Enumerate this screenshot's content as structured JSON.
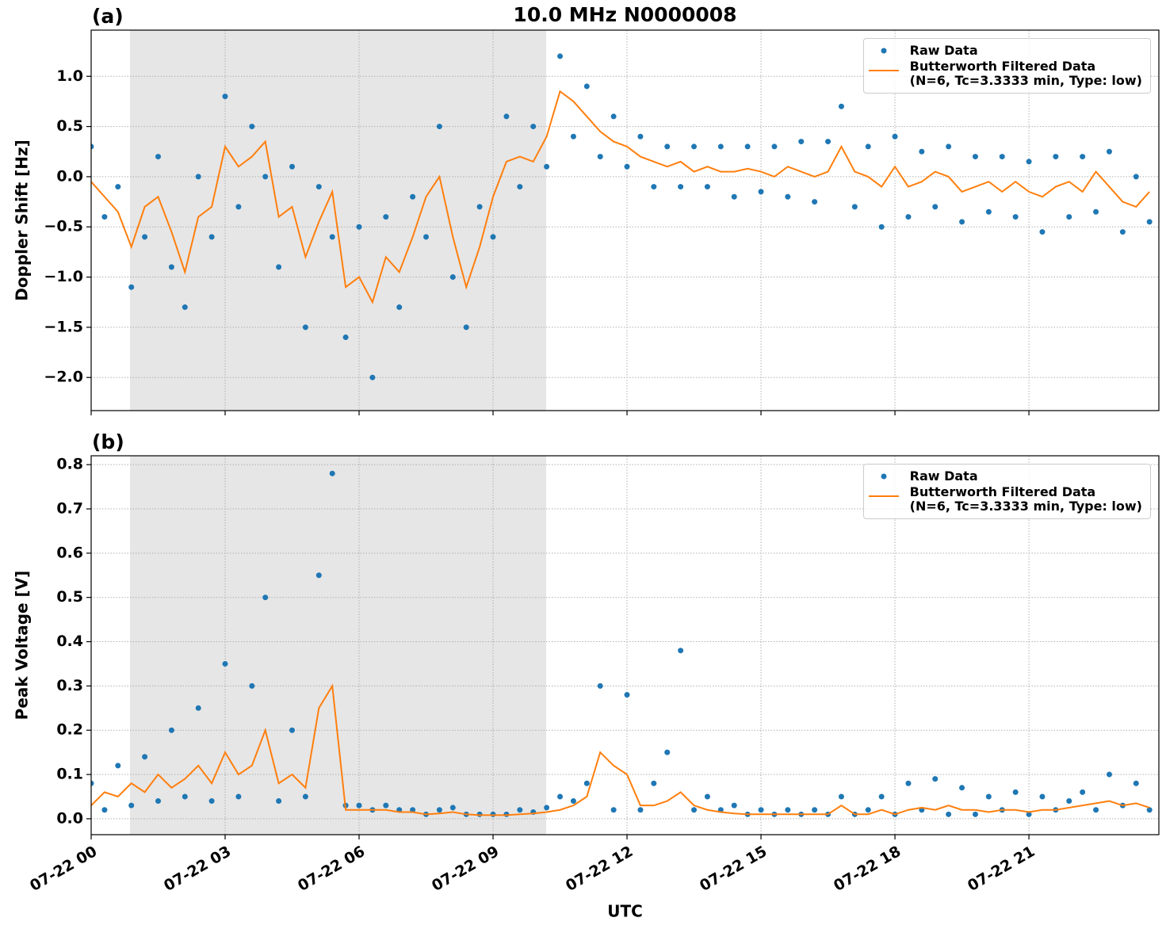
{
  "chart_data": [
    {
      "type": "line",
      "title": "10.0 MHz N0000008",
      "panel_label": "(a)",
      "ylabel": "Doppler Shift [Hz]",
      "xlim": [
        0,
        23.91
      ],
      "ylim": [
        -2.33,
        1.46
      ],
      "xticks": [
        0,
        3,
        6,
        9,
        12,
        15,
        18,
        21
      ],
      "yticks": [
        {
          "value": -2,
          "label": "−2.0"
        },
        {
          "value": -1.5,
          "label": "−1.5"
        },
        {
          "value": -1,
          "label": "−1.0"
        },
        {
          "value": -0.5,
          "label": "−0.5"
        },
        {
          "value": 0,
          "label": "0.0"
        },
        0.5,
        {
          "value": 1,
          "label": "1.0"
        }
      ],
      "grid": true,
      "legend": "upper right",
      "shaded_span": [
        0.87,
        10.19
      ],
      "shade_color": "#e6e6e6",
      "x": [
        0,
        0.3,
        0.6,
        0.9,
        1.2,
        1.5,
        1.8,
        2.1,
        2.4,
        2.7,
        3,
        3.3,
        3.6,
        3.9,
        4.2,
        4.5,
        4.8,
        5.1,
        5.4,
        5.7,
        6,
        6.3,
        6.6,
        6.9,
        7.2,
        7.5,
        7.8,
        8.1,
        8.4,
        8.7,
        9,
        9.3,
        9.6,
        9.9,
        10.2,
        10.5,
        10.8,
        11.1,
        11.4,
        11.7,
        12,
        12.3,
        12.6,
        12.9,
        13.2,
        13.5,
        13.8,
        14.1,
        14.4,
        14.7,
        15,
        15.3,
        15.6,
        15.9,
        16.2,
        16.5,
        16.8,
        17.1,
        17.4,
        17.7,
        18,
        18.3,
        18.6,
        18.9,
        19.2,
        19.5,
        19.8,
        20.1,
        20.4,
        20.7,
        21,
        21.3,
        21.6,
        21.9,
        22.2,
        22.5,
        22.8,
        23.1,
        23.4,
        23.7
      ],
      "series": [
        {
          "name": "Raw Data",
          "color": "#1f77b4",
          "style": "dots",
          "values": [
            0.3,
            -0.4,
            -0.1,
            -1.1,
            -0.6,
            0.2,
            -0.9,
            -1.3,
            0.0,
            -0.6,
            0.8,
            -0.3,
            0.5,
            0.0,
            -0.9,
            0.1,
            -1.5,
            -0.1,
            -0.6,
            -1.6,
            -0.5,
            -2.0,
            -0.4,
            -1.3,
            -0.2,
            -0.6,
            0.5,
            -1.0,
            -1.5,
            -0.3,
            -0.6,
            0.6,
            -0.1,
            0.5,
            0.1,
            1.2,
            0.4,
            0.9,
            0.2,
            0.6,
            0.1,
            0.4,
            -0.1,
            0.3,
            -0.1,
            0.3,
            -0.1,
            0.3,
            -0.2,
            0.3,
            -0.15,
            0.3,
            -0.2,
            0.35,
            -0.25,
            0.35,
            0.7,
            -0.3,
            0.3,
            -0.5,
            0.4,
            -0.4,
            0.25,
            -0.3,
            0.3,
            -0.45,
            0.2,
            -0.35,
            0.2,
            -0.4,
            0.15,
            -0.55,
            0.2,
            -0.4,
            0.2,
            -0.35,
            0.25,
            -0.55,
            0.0,
            -0.45
          ]
        },
        {
          "name": "Butterworth Filtered Data\n(N=6, Tc=3.3333 min, Type: low)",
          "color": "#ff7f0e",
          "style": "line",
          "values": [
            -0.05,
            -0.2,
            -0.35,
            -0.7,
            -0.3,
            -0.2,
            -0.55,
            -0.95,
            -0.4,
            -0.3,
            0.3,
            0.1,
            0.2,
            0.35,
            -0.4,
            -0.3,
            -0.8,
            -0.45,
            -0.15,
            -1.1,
            -1.0,
            -1.25,
            -0.8,
            -0.95,
            -0.6,
            -0.2,
            0.0,
            -0.6,
            -1.1,
            -0.7,
            -0.2,
            0.15,
            0.2,
            0.15,
            0.4,
            0.85,
            0.75,
            0.6,
            0.45,
            0.35,
            0.3,
            0.2,
            0.15,
            0.1,
            0.15,
            0.05,
            0.1,
            0.05,
            0.05,
            0.08,
            0.05,
            0.0,
            0.1,
            0.05,
            0.0,
            0.05,
            0.3,
            0.05,
            0.0,
            -0.1,
            0.1,
            -0.1,
            -0.05,
            0.05,
            0.0,
            -0.15,
            -0.1,
            -0.05,
            -0.15,
            -0.05,
            -0.15,
            -0.2,
            -0.1,
            -0.05,
            -0.15,
            0.05,
            -0.1,
            -0.25,
            -0.3,
            -0.15
          ]
        }
      ]
    },
    {
      "type": "line",
      "panel_label": "(b)",
      "ylabel": "Peak Voltage [V]",
      "xlabel": "UTC",
      "xlim": [
        0,
        23.91
      ],
      "ylim": [
        -0.036,
        0.82
      ],
      "xticks": [
        {
          "value": 0,
          "label": "07-22 00"
        },
        {
          "value": 3,
          "label": "07-22 03"
        },
        {
          "value": 6,
          "label": "07-22 06"
        },
        {
          "value": 9,
          "label": "07-22 09"
        },
        {
          "value": 12,
          "label": "07-22 12"
        },
        {
          "value": 15,
          "label": "07-22 15"
        },
        {
          "value": 18,
          "label": "07-22 18"
        },
        {
          "value": 21,
          "label": "07-22 21"
        }
      ],
      "yticks": [
        {
          "value": 0,
          "label": "0.0"
        },
        0.1,
        0.2,
        0.3,
        0.4,
        0.5,
        0.6,
        0.7,
        0.8
      ],
      "grid": true,
      "legend": "upper right",
      "shaded_span": [
        0.87,
        10.19
      ],
      "shade_color": "#e6e6e6",
      "x": [
        0,
        0.3,
        0.6,
        0.9,
        1.2,
        1.5,
        1.8,
        2.1,
        2.4,
        2.7,
        3,
        3.3,
        3.6,
        3.9,
        4.2,
        4.5,
        4.8,
        5.1,
        5.4,
        5.7,
        6,
        6.3,
        6.6,
        6.9,
        7.2,
        7.5,
        7.8,
        8.1,
        8.4,
        8.7,
        9,
        9.3,
        9.6,
        9.9,
        10.2,
        10.5,
        10.8,
        11.1,
        11.4,
        11.7,
        12,
        12.3,
        12.6,
        12.9,
        13.2,
        13.5,
        13.8,
        14.1,
        14.4,
        14.7,
        15,
        15.3,
        15.6,
        15.9,
        16.2,
        16.5,
        16.8,
        17.1,
        17.4,
        17.7,
        18,
        18.3,
        18.6,
        18.9,
        19.2,
        19.5,
        19.8,
        20.1,
        20.4,
        20.7,
        21,
        21.3,
        21.6,
        21.9,
        22.2,
        22.5,
        22.8,
        23.1,
        23.4,
        23.7
      ],
      "series": [
        {
          "name": "Raw Data",
          "color": "#1f77b4",
          "style": "dots",
          "values": [
            0.08,
            0.02,
            0.12,
            0.03,
            0.14,
            0.04,
            0.2,
            0.05,
            0.25,
            0.04,
            0.35,
            0.05,
            0.3,
            0.5,
            0.04,
            0.2,
            0.05,
            0.55,
            0.78,
            0.03,
            0.03,
            0.02,
            0.03,
            0.02,
            0.02,
            0.01,
            0.02,
            0.025,
            0.01,
            0.01,
            0.01,
            0.01,
            0.02,
            0.015,
            0.025,
            0.05,
            0.04,
            0.08,
            0.3,
            0.02,
            0.28,
            0.02,
            0.08,
            0.15,
            0.38,
            0.02,
            0.05,
            0.02,
            0.03,
            0.01,
            0.02,
            0.01,
            0.02,
            0.01,
            0.02,
            0.01,
            0.05,
            0.01,
            0.02,
            0.05,
            0.01,
            0.08,
            0.02,
            0.09,
            0.01,
            0.07,
            0.01,
            0.05,
            0.02,
            0.06,
            0.01,
            0.05,
            0.02,
            0.04,
            0.06,
            0.02,
            0.1,
            0.03,
            0.08,
            0.02
          ]
        },
        {
          "name": "Butterworth Filtered Data\n(N=6, Tc=3.3333 min, Type: low)",
          "color": "#ff7f0e",
          "style": "line",
          "values": [
            0.03,
            0.06,
            0.05,
            0.08,
            0.06,
            0.1,
            0.07,
            0.09,
            0.12,
            0.08,
            0.15,
            0.1,
            0.12,
            0.2,
            0.08,
            0.1,
            0.07,
            0.25,
            0.3,
            0.02,
            0.02,
            0.02,
            0.02,
            0.015,
            0.015,
            0.01,
            0.012,
            0.015,
            0.01,
            0.008,
            0.008,
            0.008,
            0.01,
            0.012,
            0.015,
            0.02,
            0.03,
            0.05,
            0.15,
            0.12,
            0.1,
            0.03,
            0.03,
            0.04,
            0.06,
            0.03,
            0.02,
            0.015,
            0.012,
            0.01,
            0.01,
            0.01,
            0.01,
            0.01,
            0.01,
            0.01,
            0.03,
            0.01,
            0.01,
            0.02,
            0.01,
            0.02,
            0.025,
            0.02,
            0.03,
            0.02,
            0.02,
            0.015,
            0.02,
            0.02,
            0.015,
            0.02,
            0.02,
            0.025,
            0.03,
            0.035,
            0.04,
            0.03,
            0.035,
            0.025
          ]
        }
      ]
    }
  ]
}
